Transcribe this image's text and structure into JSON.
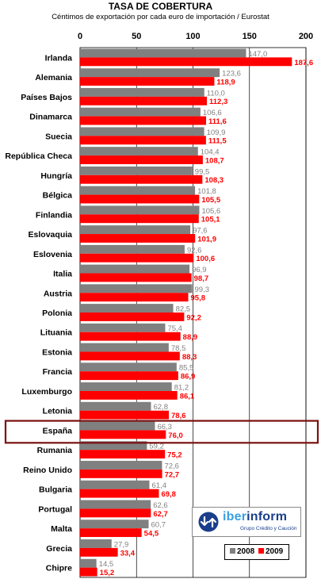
{
  "title": "TASA DE COBERTURA",
  "subtitle": "Céntimos de exportación por cada euro de importación / Eurostat",
  "logo": {
    "name_lead": "iber",
    "name_rest": "inform",
    "tagline": "Grupo Crédito y Caución"
  },
  "colors": {
    "s2008": "#808080",
    "s2009": "#ff0000",
    "highlight": "#7a1010",
    "grid": "#000000"
  },
  "chart_data": {
    "type": "bar",
    "orientation": "horizontal",
    "title": "TASA DE COBERTURA",
    "subtitle": "Céntimos de exportación por cada euro de importación / Eurostat",
    "xlim": [
      0,
      200
    ],
    "xticks": [
      "0",
      "50",
      "100",
      "150",
      "200"
    ],
    "legend_position": "bottom-right",
    "highlight_category": "España",
    "categories": [
      "Irlanda",
      "Alemania",
      "Países Bajos",
      "Dinamarca",
      "Suecia",
      "República Checa",
      "Hungría",
      "Bélgica",
      "Finlandia",
      "Eslovaquia",
      "Eslovenia",
      "Italia",
      "Austria",
      "Polonia",
      "Lituania",
      "Estonia",
      "Francia",
      "Luxemburgo",
      "Letonia",
      "España",
      "Rumania",
      "Reino Unido",
      "Bulgaria",
      "Portugal",
      "Malta",
      "Grecia",
      "Chipre"
    ],
    "series": [
      {
        "name": "2008",
        "values": [
          147.0,
          123.6,
          110.0,
          106.6,
          109.9,
          104.4,
          99.5,
          101.8,
          105.6,
          97.6,
          92.6,
          96.9,
          99.3,
          82.5,
          75.4,
          78.5,
          85.5,
          81.2,
          62.8,
          66.3,
          59.2,
          72.6,
          61.4,
          62.6,
          60.7,
          27.9,
          14.5
        ],
        "labels": [
          "147,0",
          "123,6",
          "110,0",
          "106,6",
          "109,9",
          "104,4",
          "99,5",
          "101,8",
          "105,6",
          "97,6",
          "92,6",
          "96,9",
          "99,3",
          "82,5",
          "75,4",
          "78,5",
          "85,5",
          "81,2",
          "62,8",
          "66,3",
          "59,2",
          "72,6",
          "61,4",
          "62,6",
          "60,7",
          "27,9",
          "14,5"
        ]
      },
      {
        "name": "2009",
        "values": [
          187.6,
          118.9,
          112.3,
          111.6,
          111.5,
          108.7,
          108.3,
          105.5,
          105.1,
          101.9,
          100.6,
          98.7,
          95.8,
          92.2,
          88.9,
          88.3,
          86.9,
          86.1,
          78.6,
          76.0,
          75.2,
          72.7,
          69.8,
          62.7,
          54.5,
          33.4,
          15.2
        ],
        "labels": [
          "187,6",
          "118,9",
          "112,3",
          "111,6",
          "111,5",
          "108,7",
          "108,3",
          "105,5",
          "105,1",
          "101,9",
          "100,6",
          "98,7",
          "95,8",
          "92,2",
          "88,9",
          "88,3",
          "86,9",
          "86,1",
          "78,6",
          "76,0",
          "75,2",
          "72,7",
          "69,8",
          "62,7",
          "54,5",
          "33,4",
          "15,2"
        ]
      }
    ]
  }
}
